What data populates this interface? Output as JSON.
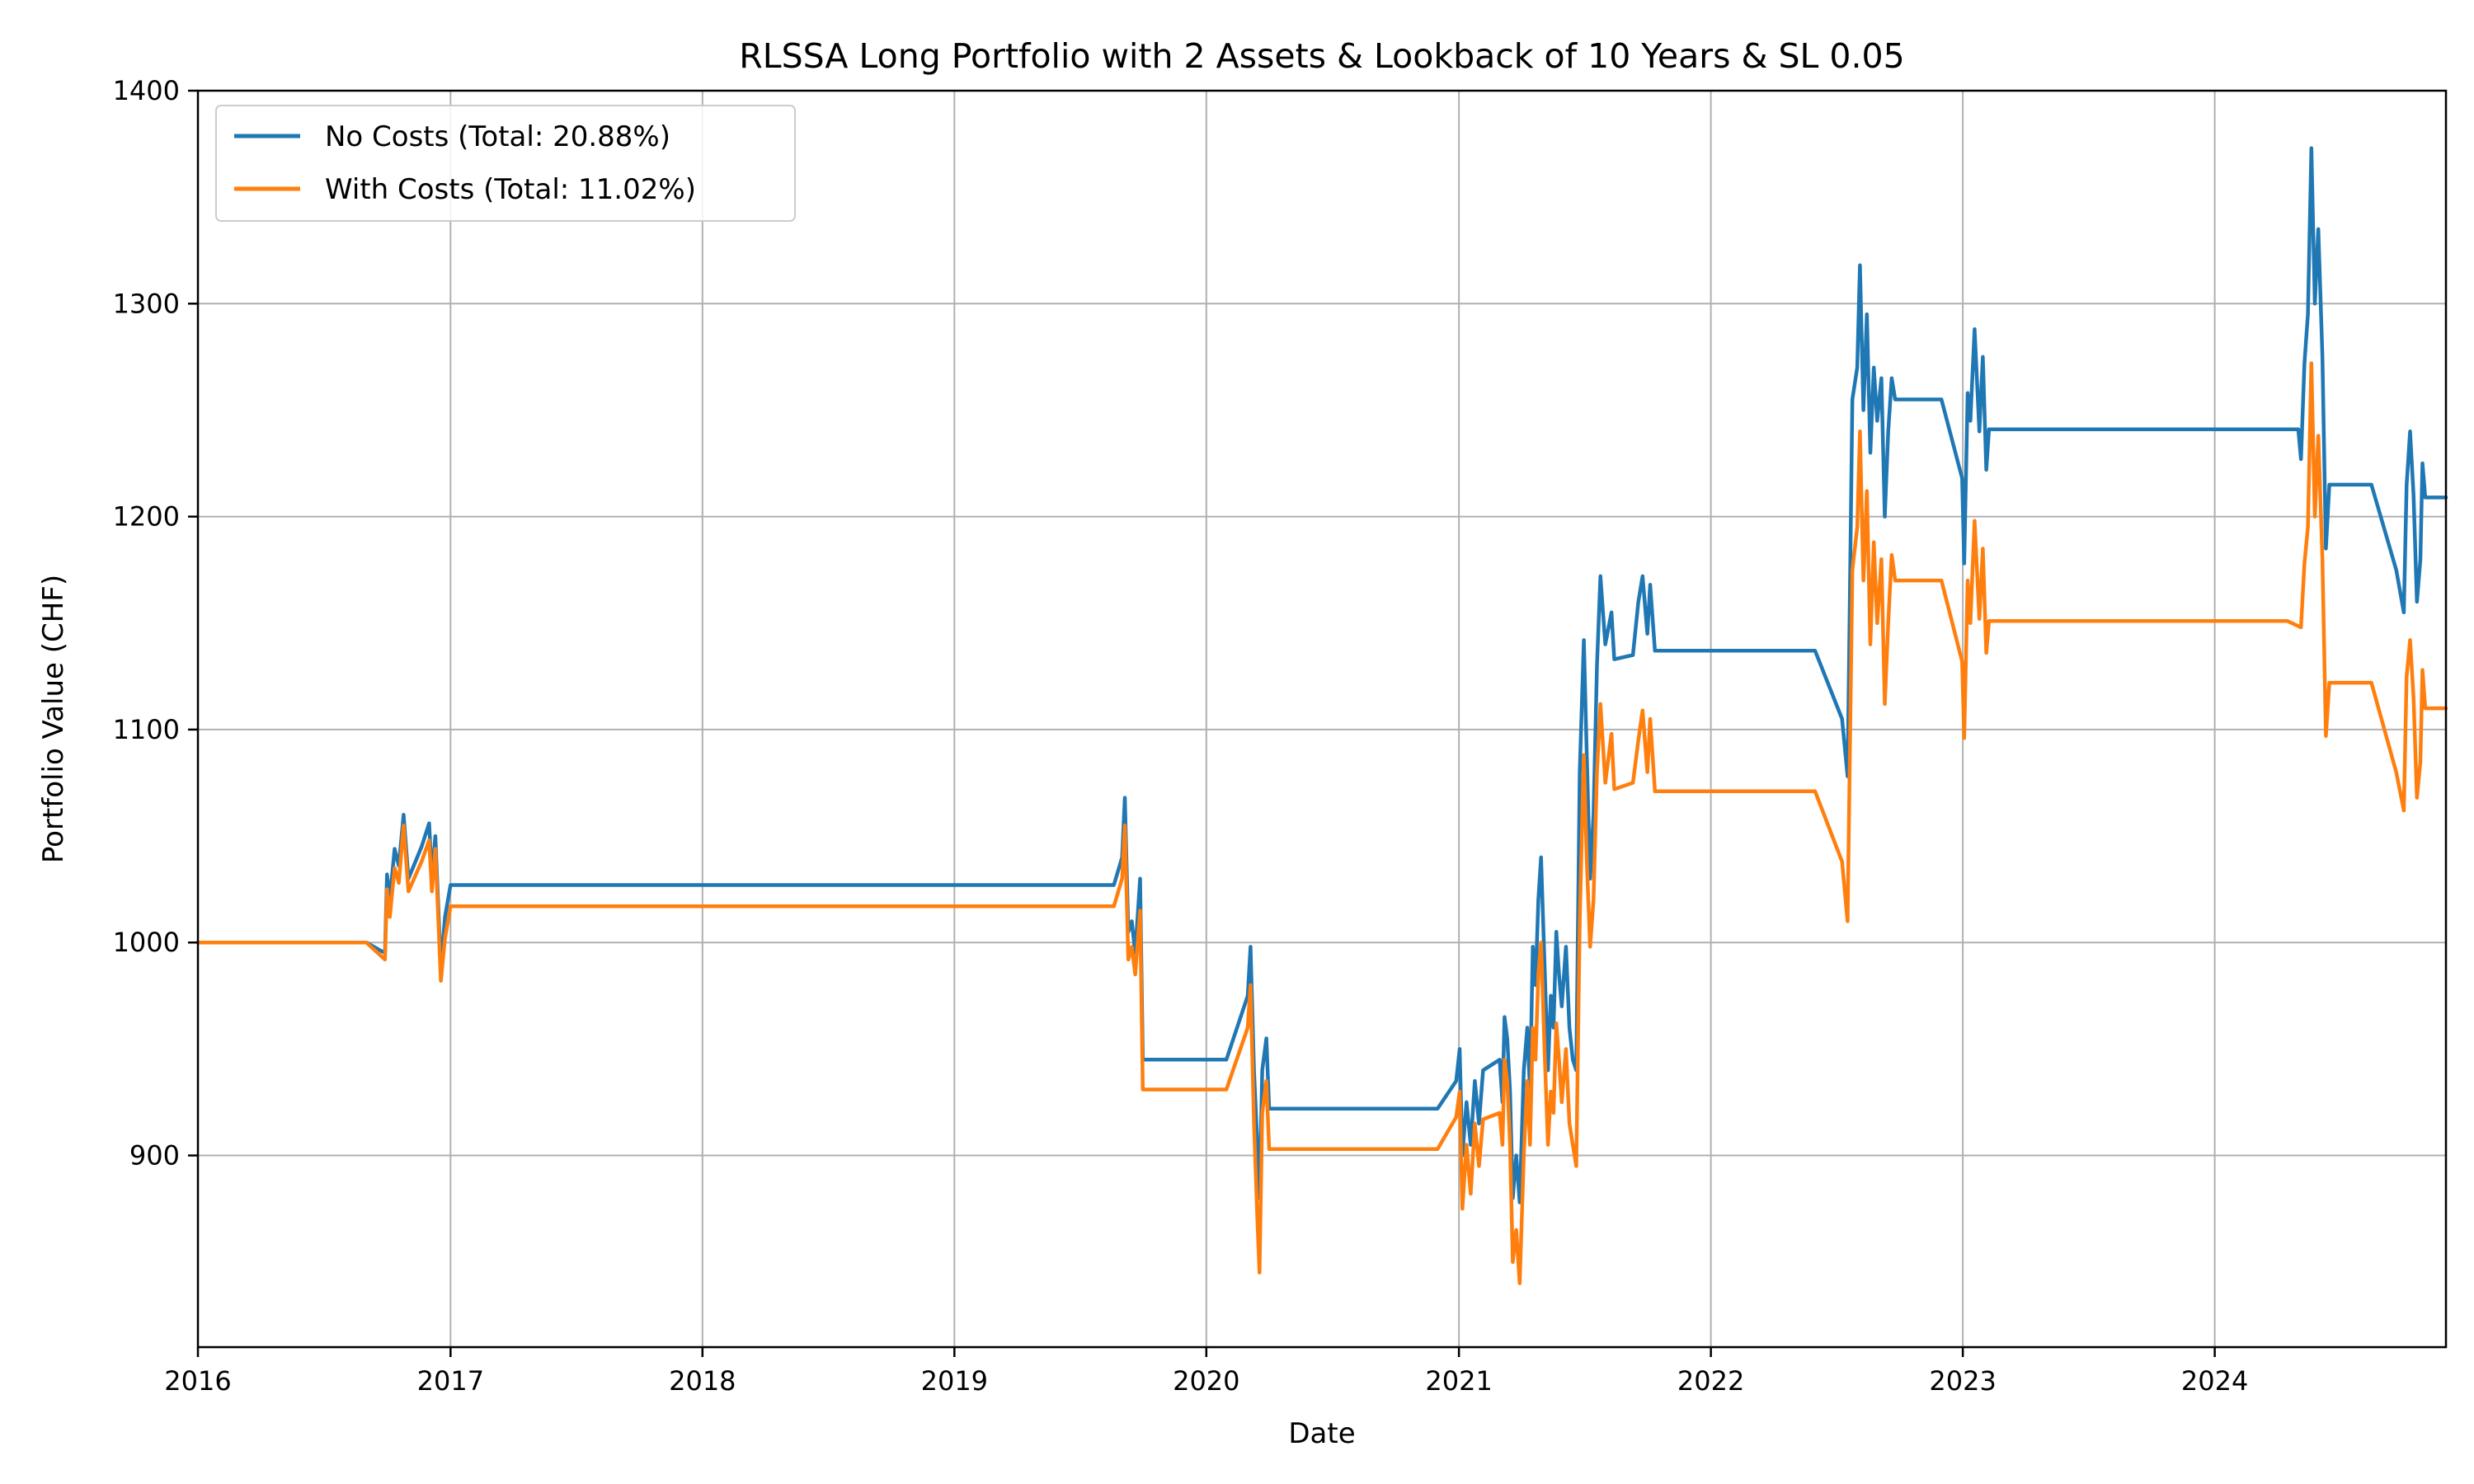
{
  "chart_data": {
    "type": "line",
    "title": "RLSSA Long Portfolio with 2 Assets & Lookback of 10 Years & SL 0.05",
    "xlabel": "Date",
    "ylabel": "Portfolio Value (CHF)",
    "xlim": [
      "2016-01-01",
      "2024-12-01"
    ],
    "ylim": [
      810,
      1400
    ],
    "x_ticks": [
      "2016",
      "2017",
      "2018",
      "2019",
      "2020",
      "2021",
      "2022",
      "2023",
      "2024"
    ],
    "y_ticks": [
      900,
      1000,
      1100,
      1200,
      1300,
      1400
    ],
    "grid": true,
    "legend": "top-left",
    "series": [
      {
        "name": "No Costs (Total: 20.88%)",
        "color": "#1f77b4",
        "points": [
          [
            "2016-01-01",
            1000
          ],
          [
            "2016-09-01",
            1000
          ],
          [
            "2016-09-28",
            995
          ],
          [
            "2016-10-01",
            1032
          ],
          [
            "2016-10-05",
            1020
          ],
          [
            "2016-10-12",
            1044
          ],
          [
            "2016-10-18",
            1036
          ],
          [
            "2016-10-25",
            1060
          ],
          [
            "2016-11-01",
            1030
          ],
          [
            "2016-11-20",
            1045
          ],
          [
            "2016-12-01",
            1056
          ],
          [
            "2016-12-05",
            1030
          ],
          [
            "2016-12-10",
            1050
          ],
          [
            "2016-12-18",
            988
          ],
          [
            "2016-12-24",
            1012
          ],
          [
            "2017-01-01",
            1027
          ],
          [
            "2019-08-20",
            1027
          ],
          [
            "2019-09-01",
            1040
          ],
          [
            "2019-09-05",
            1068
          ],
          [
            "2019-09-10",
            1005
          ],
          [
            "2019-09-15",
            1010
          ],
          [
            "2019-09-20",
            995
          ],
          [
            "2019-09-27",
            1030
          ],
          [
            "2019-10-01",
            945
          ],
          [
            "2020-01-30",
            945
          ],
          [
            "2020-03-01",
            975
          ],
          [
            "2020-03-05",
            998
          ],
          [
            "2020-03-10",
            940
          ],
          [
            "2020-03-15",
            905
          ],
          [
            "2020-03-18",
            880
          ],
          [
            "2020-03-22",
            940
          ],
          [
            "2020-03-28",
            955
          ],
          [
            "2020-04-01",
            922
          ],
          [
            "2020-12-01",
            922
          ],
          [
            "2020-12-28",
            935
          ],
          [
            "2021-01-02",
            950
          ],
          [
            "2021-01-06",
            900
          ],
          [
            "2021-01-12",
            925
          ],
          [
            "2021-01-18",
            905
          ],
          [
            "2021-01-24",
            935
          ],
          [
            "2021-01-30",
            915
          ],
          [
            "2021-02-05",
            940
          ],
          [
            "2021-03-01",
            945
          ],
          [
            "2021-03-05",
            925
          ],
          [
            "2021-03-08",
            965
          ],
          [
            "2021-03-12",
            955
          ],
          [
            "2021-03-16",
            930
          ],
          [
            "2021-03-20",
            880
          ],
          [
            "2021-03-25",
            900
          ],
          [
            "2021-03-30",
            878
          ],
          [
            "2021-04-05",
            940
          ],
          [
            "2021-04-10",
            960
          ],
          [
            "2021-04-14",
            930
          ],
          [
            "2021-04-18",
            998
          ],
          [
            "2021-04-22",
            980
          ],
          [
            "2021-04-26",
            1020
          ],
          [
            "2021-04-30",
            1040
          ],
          [
            "2021-05-05",
            990
          ],
          [
            "2021-05-10",
            940
          ],
          [
            "2021-05-14",
            975
          ],
          [
            "2021-05-18",
            960
          ],
          [
            "2021-05-22",
            1005
          ],
          [
            "2021-05-26",
            985
          ],
          [
            "2021-05-30",
            970
          ],
          [
            "2021-06-05",
            998
          ],
          [
            "2021-06-10",
            960
          ],
          [
            "2021-06-15",
            945
          ],
          [
            "2021-06-20",
            940
          ],
          [
            "2021-06-25",
            1080
          ],
          [
            "2021-07-01",
            1142
          ],
          [
            "2021-07-05",
            1090
          ],
          [
            "2021-07-10",
            1030
          ],
          [
            "2021-07-15",
            1060
          ],
          [
            "2021-07-20",
            1130
          ],
          [
            "2021-07-25",
            1172
          ],
          [
            "2021-08-01",
            1140
          ],
          [
            "2021-08-10",
            1155
          ],
          [
            "2021-08-14",
            1133
          ],
          [
            "2021-09-10",
            1135
          ],
          [
            "2021-09-18",
            1160
          ],
          [
            "2021-09-24",
            1172
          ],
          [
            "2021-10-01",
            1145
          ],
          [
            "2021-10-05",
            1168
          ],
          [
            "2021-10-12",
            1137
          ],
          [
            "2022-06-01",
            1137
          ],
          [
            "2022-07-10",
            1105
          ],
          [
            "2022-07-18",
            1078
          ],
          [
            "2022-07-25",
            1255
          ],
          [
            "2022-08-01",
            1270
          ],
          [
            "2022-08-05",
            1318
          ],
          [
            "2022-08-10",
            1250
          ],
          [
            "2022-08-15",
            1295
          ],
          [
            "2022-08-20",
            1230
          ],
          [
            "2022-08-25",
            1270
          ],
          [
            "2022-08-30",
            1245
          ],
          [
            "2022-09-05",
            1265
          ],
          [
            "2022-09-10",
            1200
          ],
          [
            "2022-09-15",
            1240
          ],
          [
            "2022-09-20",
            1265
          ],
          [
            "2022-09-25",
            1255
          ],
          [
            "2022-12-01",
            1255
          ],
          [
            "2022-12-31",
            1218
          ],
          [
            "2023-01-03",
            1178
          ],
          [
            "2023-01-08",
            1258
          ],
          [
            "2023-01-12",
            1245
          ],
          [
            "2023-01-18",
            1288
          ],
          [
            "2023-01-25",
            1240
          ],
          [
            "2023-01-30",
            1275
          ],
          [
            "2023-02-04",
            1222
          ],
          [
            "2023-02-08",
            1241
          ],
          [
            "2024-05-01",
            1241
          ],
          [
            "2024-05-05",
            1227
          ],
          [
            "2024-05-10",
            1272
          ],
          [
            "2024-05-15",
            1295
          ],
          [
            "2024-05-20",
            1373
          ],
          [
            "2024-05-25",
            1300
          ],
          [
            "2024-05-30",
            1335
          ],
          [
            "2024-06-05",
            1275
          ],
          [
            "2024-06-10",
            1185
          ],
          [
            "2024-06-15",
            1215
          ],
          [
            "2024-08-15",
            1215
          ],
          [
            "2024-09-20",
            1175
          ],
          [
            "2024-10-01",
            1155
          ],
          [
            "2024-10-05",
            1215
          ],
          [
            "2024-10-10",
            1240
          ],
          [
            "2024-10-15",
            1210
          ],
          [
            "2024-10-20",
            1160
          ],
          [
            "2024-10-25",
            1180
          ],
          [
            "2024-10-28",
            1225
          ],
          [
            "2024-11-01",
            1209
          ],
          [
            "2024-12-01",
            1209
          ]
        ]
      },
      {
        "name": "With Costs (Total: 11.02%)",
        "color": "#ff7f0e",
        "points": [
          [
            "2016-01-01",
            1000
          ],
          [
            "2016-09-01",
            1000
          ],
          [
            "2016-09-28",
            992
          ],
          [
            "2016-10-01",
            1025
          ],
          [
            "2016-10-05",
            1012
          ],
          [
            "2016-10-12",
            1035
          ],
          [
            "2016-10-18",
            1028
          ],
          [
            "2016-10-25",
            1055
          ],
          [
            "2016-11-01",
            1024
          ],
          [
            "2016-11-20",
            1038
          ],
          [
            "2016-12-01",
            1048
          ],
          [
            "2016-12-05",
            1024
          ],
          [
            "2016-12-10",
            1044
          ],
          [
            "2016-12-18",
            982
          ],
          [
            "2016-12-24",
            1002
          ],
          [
            "2017-01-01",
            1017
          ],
          [
            "2019-08-20",
            1017
          ],
          [
            "2019-09-01",
            1030
          ],
          [
            "2019-09-05",
            1055
          ],
          [
            "2019-09-10",
            992
          ],
          [
            "2019-09-15",
            998
          ],
          [
            "2019-09-20",
            985
          ],
          [
            "2019-09-27",
            1015
          ],
          [
            "2019-10-01",
            931
          ],
          [
            "2020-01-30",
            931
          ],
          [
            "2020-03-01",
            960
          ],
          [
            "2020-03-05",
            980
          ],
          [
            "2020-03-10",
            915
          ],
          [
            "2020-03-15",
            870
          ],
          [
            "2020-03-18",
            845
          ],
          [
            "2020-03-22",
            920
          ],
          [
            "2020-03-28",
            935
          ],
          [
            "2020-04-01",
            903
          ],
          [
            "2020-12-01",
            903
          ],
          [
            "2020-12-28",
            918
          ],
          [
            "2021-01-02",
            930
          ],
          [
            "2021-01-06",
            875
          ],
          [
            "2021-01-12",
            905
          ],
          [
            "2021-01-18",
            882
          ],
          [
            "2021-01-24",
            915
          ],
          [
            "2021-01-30",
            895
          ],
          [
            "2021-02-05",
            917
          ],
          [
            "2021-03-01",
            920
          ],
          [
            "2021-03-05",
            905
          ],
          [
            "2021-03-08",
            945
          ],
          [
            "2021-03-12",
            935
          ],
          [
            "2021-03-16",
            905
          ],
          [
            "2021-03-20",
            850
          ],
          [
            "2021-03-25",
            865
          ],
          [
            "2021-03-30",
            840
          ],
          [
            "2021-04-05",
            900
          ],
          [
            "2021-04-10",
            935
          ],
          [
            "2021-04-14",
            905
          ],
          [
            "2021-04-18",
            960
          ],
          [
            "2021-04-22",
            945
          ],
          [
            "2021-04-26",
            985
          ],
          [
            "2021-04-30",
            1000
          ],
          [
            "2021-05-05",
            950
          ],
          [
            "2021-05-10",
            905
          ],
          [
            "2021-05-14",
            930
          ],
          [
            "2021-05-18",
            920
          ],
          [
            "2021-05-22",
            962
          ],
          [
            "2021-05-26",
            945
          ],
          [
            "2021-05-30",
            925
          ],
          [
            "2021-06-05",
            950
          ],
          [
            "2021-06-10",
            915
          ],
          [
            "2021-06-15",
            905
          ],
          [
            "2021-06-20",
            895
          ],
          [
            "2021-06-25",
            1010
          ],
          [
            "2021-07-01",
            1088
          ],
          [
            "2021-07-05",
            1040
          ],
          [
            "2021-07-10",
            998
          ],
          [
            "2021-07-15",
            1020
          ],
          [
            "2021-07-20",
            1080
          ],
          [
            "2021-07-25",
            1112
          ],
          [
            "2021-08-01",
            1075
          ],
          [
            "2021-08-10",
            1098
          ],
          [
            "2021-08-14",
            1072
          ],
          [
            "2021-09-10",
            1075
          ],
          [
            "2021-09-18",
            1095
          ],
          [
            "2021-09-24",
            1109
          ],
          [
            "2021-10-01",
            1080
          ],
          [
            "2021-10-05",
            1105
          ],
          [
            "2021-10-12",
            1071
          ],
          [
            "2022-06-01",
            1071
          ],
          [
            "2022-07-10",
            1038
          ],
          [
            "2022-07-18",
            1010
          ],
          [
            "2022-07-25",
            1175
          ],
          [
            "2022-08-01",
            1195
          ],
          [
            "2022-08-05",
            1240
          ],
          [
            "2022-08-10",
            1170
          ],
          [
            "2022-08-15",
            1212
          ],
          [
            "2022-08-20",
            1140
          ],
          [
            "2022-08-25",
            1188
          ],
          [
            "2022-08-30",
            1150
          ],
          [
            "2022-09-05",
            1180
          ],
          [
            "2022-09-10",
            1112
          ],
          [
            "2022-09-15",
            1150
          ],
          [
            "2022-09-20",
            1182
          ],
          [
            "2022-09-25",
            1170
          ],
          [
            "2022-12-01",
            1170
          ],
          [
            "2022-12-31",
            1132
          ],
          [
            "2023-01-03",
            1096
          ],
          [
            "2023-01-08",
            1170
          ],
          [
            "2023-01-12",
            1150
          ],
          [
            "2023-01-18",
            1198
          ],
          [
            "2023-01-25",
            1152
          ],
          [
            "2023-01-30",
            1185
          ],
          [
            "2023-02-04",
            1136
          ],
          [
            "2023-02-08",
            1151
          ],
          [
            "2024-04-15",
            1151
          ],
          [
            "2024-05-05",
            1148
          ],
          [
            "2024-05-10",
            1178
          ],
          [
            "2024-05-15",
            1195
          ],
          [
            "2024-05-20",
            1272
          ],
          [
            "2024-05-25",
            1200
          ],
          [
            "2024-05-30",
            1238
          ],
          [
            "2024-06-05",
            1180
          ],
          [
            "2024-06-10",
            1097
          ],
          [
            "2024-06-15",
            1122
          ],
          [
            "2024-08-15",
            1122
          ],
          [
            "2024-09-20",
            1080
          ],
          [
            "2024-10-01",
            1062
          ],
          [
            "2024-10-05",
            1125
          ],
          [
            "2024-10-10",
            1142
          ],
          [
            "2024-10-15",
            1115
          ],
          [
            "2024-10-20",
            1068
          ],
          [
            "2024-10-25",
            1085
          ],
          [
            "2024-10-28",
            1128
          ],
          [
            "2024-11-01",
            1110
          ],
          [
            "2024-12-01",
            1110
          ]
        ]
      }
    ]
  }
}
